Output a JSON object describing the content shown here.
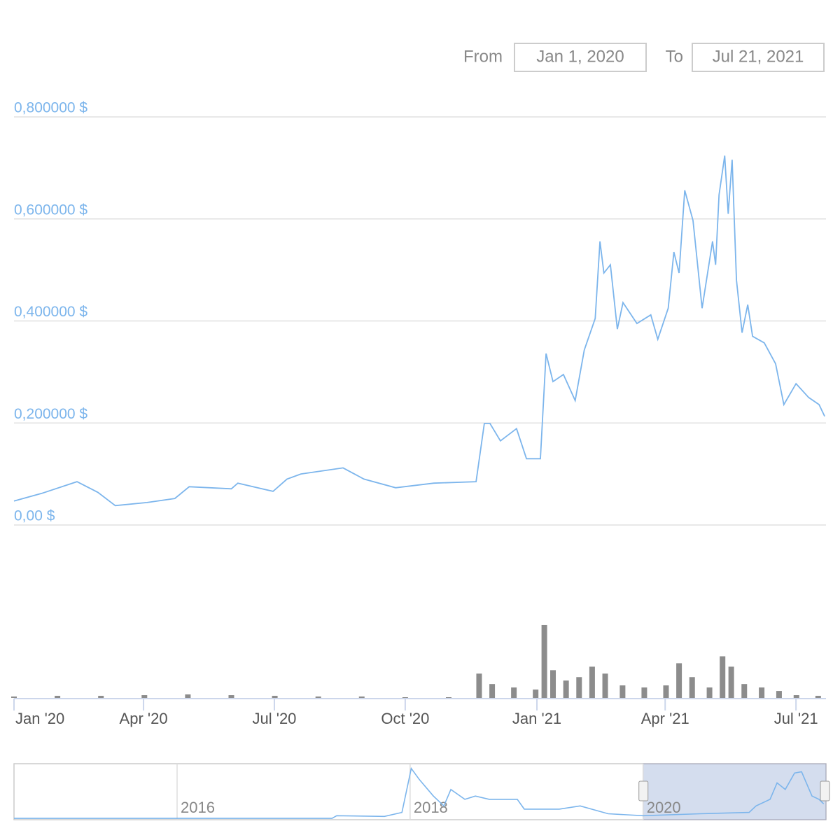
{
  "range_selector": {
    "from_label": "From",
    "from": "Jan 1, 2020",
    "to_label": "To",
    "to": "Jul 21, 2021"
  },
  "chart_data": [
    {
      "type": "line",
      "color": "#7cb5ec",
      "grid": true,
      "x": [
        0,
        0.64,
        1.45,
        1.93,
        2.33,
        3.06,
        3.7,
        4.03,
        5,
        5.15,
        5.96,
        6.28,
        6.6,
        7.57,
        8.05,
        8.78,
        9.66,
        10.63,
        10.82,
        10.95,
        11.19,
        11.56,
        11.79,
        12.11,
        12.24,
        12.4,
        12.64,
        12.91,
        13.12,
        13.37,
        13.48,
        13.57,
        13.72,
        13.88,
        14.01,
        14.33,
        14.65,
        14.81,
        15.05,
        15.18,
        15.3,
        15.43,
        15.62,
        15.83,
        16.07,
        16.14,
        16.22,
        16.35,
        16.43,
        16.52,
        16.62,
        16.75,
        16.88,
        16.99,
        17.26,
        17.52,
        17.71,
        17.99,
        18.28,
        18.52,
        18.65
      ],
      "values": [
        0.047,
        0.062,
        0.085,
        0.064,
        0.038,
        0.044,
        0.052,
        0.075,
        0.071,
        0.082,
        0.066,
        0.09,
        0.1,
        0.112,
        0.09,
        0.073,
        0.082,
        0.085,
        0.199,
        0.199,
        0.165,
        0.189,
        0.13,
        0.13,
        0.336,
        0.281,
        0.295,
        0.244,
        0.343,
        0.405,
        0.556,
        0.494,
        0.51,
        0.384,
        0.436,
        0.395,
        0.412,
        0.364,
        0.425,
        0.535,
        0.494,
        0.656,
        0.597,
        0.425,
        0.556,
        0.51,
        0.647,
        0.724,
        0.61,
        0.716,
        0.48,
        0.377,
        0.432,
        0.37,
        0.357,
        0.316,
        0.236,
        0.277,
        0.25,
        0.236,
        0.213
      ],
      "xlim": [
        0,
        18.68
      ],
      "xticks": [
        {
          "value": 0,
          "label": "Jan '20"
        },
        {
          "value": 2.98,
          "label": "Apr '20"
        },
        {
          "value": 5.99,
          "label": "Jul '20"
        },
        {
          "value": 9,
          "label": "Oct '20"
        },
        {
          "value": 12.03,
          "label": "Jan '21"
        },
        {
          "value": 14.98,
          "label": "Apr '21"
        },
        {
          "value": 17.99,
          "label": "Jul '21"
        }
      ],
      "ylim": [
        0,
        0.8
      ],
      "yticks": [
        {
          "value": 0,
          "label": "0,00 $"
        },
        {
          "value": 0.2,
          "label": "0,200000 $"
        },
        {
          "value": 0.4,
          "label": "0,400000 $"
        },
        {
          "value": 0.6,
          "label": "0,600000 $"
        },
        {
          "value": 0.8,
          "label": "0,800000 $"
        }
      ]
    },
    {
      "type": "bar",
      "color": "#8c8c8c",
      "x": [
        0,
        1,
        2,
        3,
        4,
        5,
        6,
        7,
        8,
        9,
        10,
        10.7,
        11,
        11.5,
        12,
        12.2,
        12.4,
        12.7,
        13,
        13.3,
        13.6,
        14,
        14.5,
        15,
        15.3,
        15.6,
        16,
        16.3,
        16.5,
        16.8,
        17.2,
        17.6,
        18,
        18.5
      ],
      "values": [
        2,
        3,
        3,
        4,
        5,
        4,
        3,
        2,
        2,
        1,
        1,
        35,
        20,
        15,
        12,
        105,
        40,
        25,
        30,
        45,
        35,
        18,
        15,
        18,
        50,
        30,
        15,
        60,
        45,
        20,
        15,
        10,
        4,
        3
      ],
      "xlim": [
        0,
        18.68
      ],
      "ylim": [
        0,
        110
      ]
    },
    {
      "type": "line",
      "color": "#7cb5ec",
      "x": [
        2014.6,
        2017.33,
        2017.37,
        2017.78,
        2017.93,
        2018.01,
        2018.08,
        2018.2,
        2018.29,
        2018.35,
        2018.47,
        2018.56,
        2018.68,
        2018.92,
        2018.98,
        2019.28,
        2019.46,
        2019.7,
        2020.0,
        2020.49,
        2020.91,
        2020.97,
        2021.09,
        2021.15,
        2021.22,
        2021.3,
        2021.36,
        2021.45,
        2021.51,
        2021.55
      ],
      "values": [
        0.01,
        0.01,
        0.05,
        0.04,
        0.1,
        0.77,
        0.6,
        0.35,
        0.2,
        0.45,
        0.3,
        0.35,
        0.3,
        0.3,
        0.15,
        0.15,
        0.2,
        0.08,
        0.05,
        0.08,
        0.1,
        0.2,
        0.3,
        0.55,
        0.45,
        0.7,
        0.72,
        0.35,
        0.3,
        0.23
      ],
      "xlim": [
        2014.6,
        2021.57
      ],
      "ylim": [
        0,
        0.8
      ],
      "xticks": [
        2016,
        2018,
        2020
      ],
      "selection": [
        2020,
        2021.57
      ]
    }
  ]
}
